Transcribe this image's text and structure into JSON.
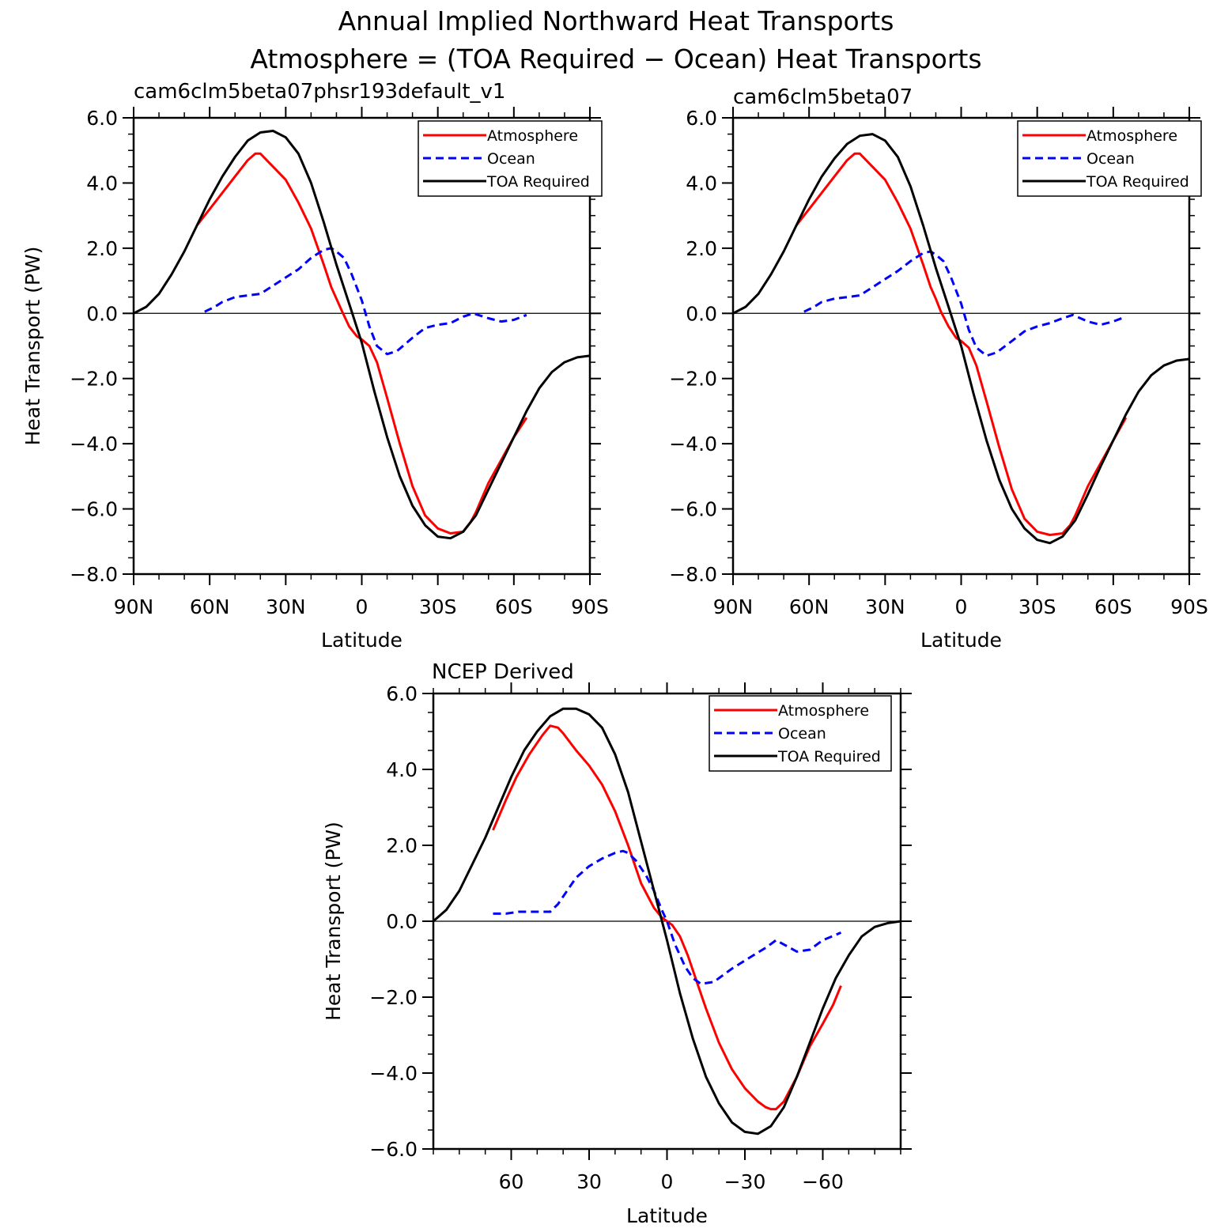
{
  "figure": {
    "title_line1": "Annual Implied Northward Heat Transports",
    "title_line2": "Atmosphere = (TOA Required − Ocean) Heat Transports"
  },
  "colors": {
    "atmosphere": "#ff0000",
    "ocean": "#0000ff",
    "toa": "#000000"
  },
  "chart_data": [
    {
      "type": "line",
      "title": "cam6clm5beta07phsr193default_v1",
      "xlabel": "Latitude",
      "ylabel": "Heat Transport (PW)",
      "xlim": [
        90,
        -90
      ],
      "ylim": [
        -8,
        6
      ],
      "x_ticks": [
        90,
        60,
        30,
        0,
        -30,
        -60,
        -90
      ],
      "x_tick_labels": [
        "90N",
        "60N",
        "30N",
        "0",
        "30S",
        "60S",
        "90S"
      ],
      "y_ticks": [
        -8,
        -6,
        -4,
        -2,
        0,
        2,
        4,
        6
      ],
      "y_tick_labels": [
        "−8.0",
        "−6.0",
        "−4.0",
        "−2.0",
        "0.0",
        "2.0",
        "4.0",
        "6.0"
      ],
      "legend": {
        "placement": "top-right",
        "entries": [
          "Atmosphere",
          "Ocean",
          "TOA Required"
        ]
      },
      "zero_line": true,
      "series": [
        {
          "name": "Atmosphere",
          "color": "#ff0000",
          "dash": "solid",
          "x": [
            65,
            60,
            50,
            45,
            42,
            40,
            35,
            30,
            25,
            20,
            15,
            12,
            10,
            8,
            5,
            2,
            0,
            -3,
            -6,
            -10,
            -15,
            -20,
            -25,
            -30,
            -35,
            -40,
            -43,
            -45,
            -50,
            -55,
            -60,
            -65
          ],
          "y": [
            2.7,
            3.2,
            4.2,
            4.7,
            4.9,
            4.9,
            4.5,
            4.1,
            3.4,
            2.6,
            1.5,
            0.8,
            0.45,
            0.1,
            -0.4,
            -0.7,
            -0.8,
            -1.0,
            -1.5,
            -2.6,
            -4.0,
            -5.3,
            -6.2,
            -6.6,
            -6.75,
            -6.7,
            -6.4,
            -6.1,
            -5.2,
            -4.5,
            -3.8,
            -3.2
          ]
        },
        {
          "name": "Ocean",
          "color": "#0000ff",
          "dash": "dashed",
          "x": [
            62,
            58,
            55,
            50,
            45,
            40,
            35,
            30,
            25,
            20,
            15,
            12,
            10,
            7,
            4,
            0,
            -3,
            -6,
            -10,
            -14,
            -20,
            -25,
            -30,
            -35,
            -40,
            -44,
            -50,
            -55,
            -60,
            -65
          ],
          "y": [
            0.05,
            0.2,
            0.35,
            0.5,
            0.55,
            0.6,
            0.85,
            1.1,
            1.35,
            1.7,
            1.95,
            2.0,
            1.9,
            1.7,
            1.2,
            0.4,
            -0.4,
            -1.0,
            -1.25,
            -1.15,
            -0.75,
            -0.45,
            -0.35,
            -0.3,
            -0.1,
            0.0,
            -0.15,
            -0.25,
            -0.2,
            -0.05
          ]
        },
        {
          "name": "TOA Required",
          "color": "#000000",
          "dash": "solid",
          "x": [
            90,
            85,
            80,
            75,
            70,
            65,
            60,
            55,
            50,
            45,
            40,
            35,
            30,
            25,
            20,
            15,
            10,
            5,
            0,
            -5,
            -10,
            -15,
            -20,
            -25,
            -30,
            -35,
            -40,
            -45,
            -50,
            -55,
            -60,
            -65,
            -70,
            -75,
            -80,
            -85,
            -90
          ],
          "y": [
            0.0,
            0.2,
            0.6,
            1.2,
            1.9,
            2.7,
            3.5,
            4.2,
            4.8,
            5.3,
            5.55,
            5.6,
            5.4,
            4.9,
            4.0,
            2.8,
            1.5,
            0.3,
            -0.9,
            -2.4,
            -3.8,
            -5.0,
            -5.9,
            -6.5,
            -6.85,
            -6.9,
            -6.7,
            -6.2,
            -5.4,
            -4.6,
            -3.8,
            -3.0,
            -2.3,
            -1.8,
            -1.5,
            -1.35,
            -1.3
          ]
        }
      ]
    },
    {
      "type": "line",
      "title": "cam6clm5beta07",
      "xlabel": "Latitude",
      "ylabel": "",
      "xlim": [
        90,
        -90
      ],
      "ylim": [
        -8,
        6
      ],
      "x_ticks": [
        90,
        60,
        30,
        0,
        -30,
        -60,
        -90
      ],
      "x_tick_labels": [
        "90N",
        "60N",
        "30N",
        "0",
        "30S",
        "60S",
        "90S"
      ],
      "y_ticks": [
        -8,
        -6,
        -4,
        -2,
        0,
        2,
        4,
        6
      ],
      "y_tick_labels": [
        "−8.0",
        "−6.0",
        "−4.0",
        "−2.0",
        "0.0",
        "2.0",
        "4.0",
        "6.0"
      ],
      "legend": {
        "placement": "top-right",
        "entries": [
          "Atmosphere",
          "Ocean",
          "TOA Required"
        ]
      },
      "zero_line": true,
      "series": [
        {
          "name": "Atmosphere",
          "color": "#ff0000",
          "dash": "solid",
          "x": [
            65,
            60,
            50,
            45,
            42,
            40,
            35,
            30,
            25,
            20,
            15,
            12,
            10,
            8,
            5,
            2,
            0,
            -3,
            -6,
            -10,
            -15,
            -20,
            -25,
            -30,
            -35,
            -40,
            -43,
            -45,
            -50,
            -55,
            -60,
            -65
          ],
          "y": [
            2.7,
            3.2,
            4.2,
            4.7,
            4.9,
            4.9,
            4.5,
            4.1,
            3.4,
            2.6,
            1.5,
            0.8,
            0.45,
            0.05,
            -0.4,
            -0.75,
            -0.85,
            -1.05,
            -1.6,
            -2.7,
            -4.1,
            -5.4,
            -6.3,
            -6.7,
            -6.8,
            -6.75,
            -6.5,
            -6.2,
            -5.3,
            -4.6,
            -3.9,
            -3.2
          ]
        },
        {
          "name": "Ocean",
          "color": "#0000ff",
          "dash": "dashed",
          "x": [
            62,
            58,
            55,
            50,
            45,
            40,
            35,
            30,
            25,
            20,
            15,
            12,
            10,
            7,
            4,
            0,
            -3,
            -6,
            -10,
            -14,
            -20,
            -25,
            -30,
            -35,
            -40,
            -44,
            -50,
            -55,
            -60,
            -65
          ],
          "y": [
            0.05,
            0.2,
            0.35,
            0.45,
            0.5,
            0.55,
            0.8,
            1.05,
            1.3,
            1.6,
            1.85,
            1.9,
            1.8,
            1.6,
            1.1,
            0.3,
            -0.5,
            -1.05,
            -1.3,
            -1.2,
            -0.85,
            -0.55,
            -0.4,
            -0.3,
            -0.15,
            -0.05,
            -0.25,
            -0.35,
            -0.25,
            -0.1
          ]
        },
        {
          "name": "TOA Required",
          "color": "#000000",
          "dash": "solid",
          "x": [
            90,
            85,
            80,
            75,
            70,
            65,
            60,
            55,
            50,
            45,
            40,
            35,
            30,
            25,
            20,
            15,
            10,
            5,
            0,
            -5,
            -10,
            -15,
            -20,
            -25,
            -30,
            -35,
            -40,
            -45,
            -50,
            -55,
            -60,
            -65,
            -70,
            -75,
            -80,
            -85,
            -90
          ],
          "y": [
            0.0,
            0.2,
            0.6,
            1.2,
            1.9,
            2.7,
            3.5,
            4.2,
            4.75,
            5.2,
            5.45,
            5.5,
            5.3,
            4.8,
            3.9,
            2.7,
            1.4,
            0.2,
            -1.0,
            -2.5,
            -3.9,
            -5.1,
            -6.0,
            -6.6,
            -6.95,
            -7.05,
            -6.85,
            -6.35,
            -5.55,
            -4.7,
            -3.9,
            -3.1,
            -2.4,
            -1.9,
            -1.6,
            -1.45,
            -1.4
          ]
        }
      ]
    },
    {
      "type": "line",
      "title": "NCEP Derived",
      "xlabel": "Latitude",
      "ylabel": "Heat Transport (PW)",
      "xlim": [
        90,
        -90
      ],
      "ylim": [
        -6,
        6
      ],
      "x_ticks": [
        60,
        30,
        0,
        -30,
        -60
      ],
      "x_tick_labels": [
        "60",
        "30",
        "0",
        "−30",
        "−60"
      ],
      "y_ticks": [
        -6,
        -4,
        -2,
        0,
        2,
        4,
        6
      ],
      "y_tick_labels": [
        "−6.0",
        "−4.0",
        "−2.0",
        "0.0",
        "2.0",
        "4.0",
        "6.0"
      ],
      "legend": {
        "placement": "top-right",
        "entries": [
          "Atmosphere",
          "Ocean",
          "TOA Required"
        ]
      },
      "zero_line": true,
      "series": [
        {
          "name": "Atmosphere",
          "color": "#ff0000",
          "dash": "solid",
          "x": [
            67,
            62,
            58,
            53,
            48,
            45,
            42,
            40,
            35,
            30,
            25,
            20,
            15,
            10,
            5,
            2,
            0,
            -2,
            -5,
            -8,
            -12,
            -15,
            -20,
            -25,
            -30,
            -35,
            -38,
            -40,
            -42,
            -45,
            -50,
            -55,
            -60,
            -64,
            -67
          ],
          "y": [
            2.4,
            3.2,
            3.8,
            4.4,
            4.9,
            5.15,
            5.1,
            4.95,
            4.5,
            4.1,
            3.6,
            2.9,
            2.0,
            1.0,
            0.35,
            0.1,
            0.0,
            -0.1,
            -0.4,
            -0.9,
            -1.7,
            -2.3,
            -3.2,
            -3.9,
            -4.4,
            -4.75,
            -4.9,
            -4.95,
            -4.95,
            -4.75,
            -4.1,
            -3.3,
            -2.7,
            -2.2,
            -1.7
          ]
        },
        {
          "name": "Ocean",
          "color": "#0000ff",
          "dash": "dashed",
          "x": [
            67,
            62,
            57,
            50,
            45,
            42,
            38,
            35,
            30,
            25,
            20,
            17,
            15,
            12,
            8,
            5,
            2,
            0,
            -3,
            -7,
            -10,
            -13,
            -18,
            -25,
            -32,
            -38,
            -42,
            -46,
            -50,
            -55,
            -60,
            -67
          ],
          "y": [
            0.2,
            0.2,
            0.25,
            0.25,
            0.25,
            0.45,
            0.85,
            1.15,
            1.45,
            1.65,
            1.8,
            1.85,
            1.8,
            1.6,
            1.2,
            0.8,
            0.3,
            0.0,
            -0.6,
            -1.2,
            -1.5,
            -1.65,
            -1.6,
            -1.25,
            -0.95,
            -0.7,
            -0.5,
            -0.65,
            -0.8,
            -0.75,
            -0.5,
            -0.3
          ]
        },
        {
          "name": "TOA Required",
          "color": "#000000",
          "dash": "solid",
          "x": [
            90,
            85,
            80,
            75,
            70,
            65,
            60,
            55,
            50,
            45,
            40,
            35,
            30,
            25,
            20,
            15,
            10,
            5,
            0,
            -5,
            -10,
            -15,
            -20,
            -25,
            -30,
            -35,
            -40,
            -45,
            -50,
            -55,
            -60,
            -65,
            -70,
            -75,
            -80,
            -85,
            -90
          ],
          "y": [
            0.0,
            0.3,
            0.8,
            1.5,
            2.2,
            3.0,
            3.8,
            4.5,
            5.0,
            5.4,
            5.6,
            5.6,
            5.45,
            5.1,
            4.4,
            3.4,
            2.1,
            0.8,
            -0.5,
            -1.9,
            -3.1,
            -4.1,
            -4.8,
            -5.3,
            -5.55,
            -5.6,
            -5.4,
            -4.9,
            -4.1,
            -3.2,
            -2.3,
            -1.5,
            -0.9,
            -0.4,
            -0.15,
            -0.05,
            0.0
          ]
        }
      ]
    }
  ]
}
